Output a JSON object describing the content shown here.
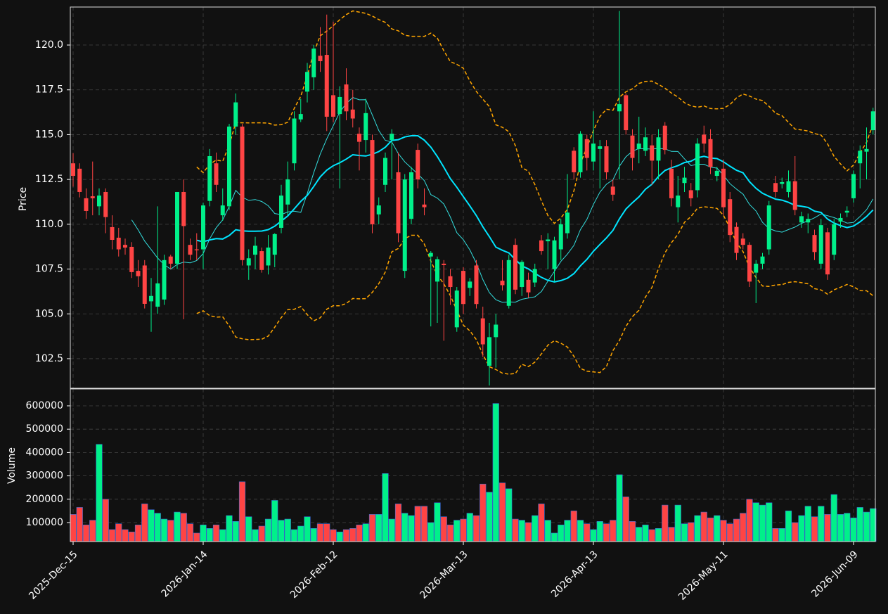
{
  "chart_data": {
    "type": "candlestick",
    "ylabel": "Price",
    "volume_label": "Volume",
    "up_color": "#00f08a",
    "down_color": "#ff4444",
    "grid": true,
    "moving_averages": [
      {
        "window": 10,
        "color": "#33dddd",
        "width": 1
      },
      {
        "window": 20,
        "color": "#00e5ff",
        "width": 2
      }
    ],
    "bollinger": {
      "window": 20,
      "std": 2,
      "color": "#ffa500"
    },
    "ylim": [
      100.85,
      122.12
    ],
    "yticks": [
      {
        "value": 102.5,
        "label": "102.5"
      },
      {
        "value": 105,
        "label": "105.0"
      },
      {
        "value": 107.5,
        "label": "107.5"
      },
      {
        "value": 110,
        "label": "110.0"
      },
      {
        "value": 112.5,
        "label": "112.5"
      },
      {
        "value": 115,
        "label": "115.0"
      },
      {
        "value": 117.5,
        "label": "117.5"
      },
      {
        "value": 120,
        "label": "120.0"
      }
    ],
    "volume_ylim": [
      18675,
      672300
    ],
    "volume_yticks": [
      100000,
      200000,
      300000,
      400000,
      500000,
      600000
    ],
    "categories": [
      "2025-Dec-15",
      null,
      null,
      null,
      null,
      null,
      null,
      null,
      null,
      null,
      null,
      null,
      null,
      null,
      null,
      null,
      null,
      null,
      null,
      null,
      "2026-Jan-14",
      null,
      null,
      null,
      null,
      null,
      null,
      null,
      null,
      null,
      null,
      null,
      null,
      null,
      null,
      null,
      null,
      null,
      null,
      null,
      "2026-Feb-12",
      null,
      null,
      null,
      null,
      null,
      null,
      null,
      null,
      null,
      null,
      null,
      null,
      null,
      null,
      null,
      null,
      null,
      null,
      null,
      "2026-Mar-13",
      null,
      null,
      null,
      null,
      null,
      null,
      null,
      null,
      null,
      null,
      null,
      null,
      null,
      null,
      null,
      null,
      null,
      null,
      null,
      "2026-Apr-13",
      null,
      null,
      null,
      null,
      null,
      null,
      null,
      null,
      null,
      null,
      null,
      null,
      null,
      null,
      null,
      null,
      null,
      null,
      null,
      "2026-May-11",
      null,
      null,
      null,
      null,
      null,
      null,
      null,
      null,
      null,
      null,
      null,
      null,
      null,
      null,
      null,
      null,
      null,
      null,
      null,
      "2026-Jun-09",
      null,
      null,
      null
    ],
    "open": [
      113.4,
      113.1,
      111.45,
      111.56,
      111.0,
      111.8,
      109.84,
      109.25,
      108.85,
      108.74,
      107.4,
      107.7,
      105.7,
      105.4,
      105.8,
      108.2,
      107.8,
      111.8,
      108.85,
      108.6,
      108.6,
      111.3,
      113.4,
      110.5,
      111.0,
      115.45,
      115.45,
      107.7,
      108.3,
      108.5,
      107.7,
      108.3,
      109.8,
      111.1,
      113.4,
      115.85,
      117.4,
      118.2,
      119.4,
      119.45,
      117.2,
      116.15,
      117.8,
      116.4,
      115.05,
      114.7,
      114.7,
      110.55,
      112.2,
      114.7,
      112.9,
      107.4,
      110.3,
      114.15,
      111.1,
      108.2,
      106.8,
      107.8,
      107.1,
      104.25,
      107.4,
      106.45,
      107.7,
      104.75,
      102.1,
      103.7,
      106.85,
      105.45,
      108.85,
      106.5,
      106.9,
      106.75,
      109.1,
      109.05,
      107.5,
      108.6,
      109.5,
      114.1,
      112.9,
      114.75,
      113.5,
      114.2,
      114.35,
      112.1,
      116.3,
      117.2,
      114.95,
      114.2,
      114.1,
      114.4,
      113.55,
      115.5,
      113.1,
      110.95,
      112.3,
      111.9,
      111.9,
      115.0,
      114.75,
      112.7,
      113.1,
      111.4,
      109.85,
      109.2,
      108.85,
      107.3,
      107.8,
      108.6,
      112.3,
      112.25,
      111.8,
      112.4,
      110.1,
      110.1,
      109.4,
      107.8,
      109.55,
      108.3,
      110.15,
      110.65,
      111.45,
      113.4,
      114.05,
      115.25
    ],
    "high": [
      113.96,
      113.4,
      112.0,
      113.5,
      112.0,
      112.0,
      110.5,
      109.8,
      109.2,
      109.0,
      108.0,
      108.0,
      107.0,
      111.0,
      108.3,
      108.3,
      111.8,
      112.5,
      109.2,
      109.5,
      111.2,
      114.2,
      114.0,
      112.0,
      115.6,
      117.3,
      115.6,
      108.6,
      109.3,
      108.7,
      109.4,
      109.5,
      112.2,
      113.5,
      116.3,
      117.0,
      119.0,
      120.0,
      121.0,
      121.7,
      121.3,
      117.7,
      118.7,
      117.5,
      115.4,
      117.0,
      115.0,
      111.5,
      114.0,
      115.3,
      114.0,
      112.8,
      113.2,
      114.5,
      112.0,
      108.5,
      108.2,
      108.0,
      107.5,
      106.5,
      107.6,
      107.0,
      108.0,
      105.4,
      104.5,
      105.0,
      108.0,
      108.3,
      109.2,
      108.0,
      107.3,
      107.8,
      109.4,
      109.5,
      109.3,
      110.3,
      112.8,
      114.3,
      115.2,
      115.0,
      116.3,
      114.7,
      114.7,
      112.5,
      121.9,
      117.3,
      115.3,
      116.0,
      115.4,
      115.0,
      115.3,
      115.7,
      113.6,
      112.7,
      113.2,
      112.3,
      114.8,
      115.5,
      115.3,
      113.2,
      113.6,
      111.8,
      110.1,
      109.5,
      109.0,
      108.0,
      108.4,
      111.3,
      112.7,
      112.6,
      113.0,
      113.8,
      110.7,
      110.6,
      109.7,
      110.3,
      109.8,
      110.3,
      110.6,
      111.0,
      113.0,
      114.4,
      115.4,
      116.5
    ],
    "low": [
      112.1,
      111.5,
      110.3,
      110.5,
      110.5,
      109.5,
      108.6,
      108.2,
      108.3,
      107.0,
      106.5,
      105.3,
      104.0,
      105.0,
      105.5,
      107.5,
      107.5,
      104.7,
      108.0,
      108.0,
      107.5,
      111.0,
      111.8,
      110.2,
      110.8,
      115.0,
      107.7,
      106.9,
      107.5,
      107.3,
      107.2,
      107.6,
      109.5,
      110.5,
      113.0,
      115.7,
      116.8,
      117.5,
      118.5,
      115.2,
      115.7,
      112.0,
      115.8,
      115.4,
      113.0,
      114.0,
      109.5,
      110.0,
      111.8,
      112.5,
      109.0,
      107.0,
      110.0,
      112.0,
      110.5,
      104.3,
      104.5,
      103.5,
      105.5,
      104.0,
      105.0,
      106.0,
      105.3,
      102.6,
      101.0,
      102.0,
      106.3,
      105.3,
      106.1,
      106.0,
      105.9,
      106.5,
      108.3,
      107.5,
      106.8,
      108.0,
      109.2,
      112.5,
      112.6,
      113.0,
      113.0,
      112.0,
      112.5,
      111.3,
      112.5,
      115.0,
      113.0,
      113.4,
      113.8,
      112.2,
      112.5,
      113.9,
      111.0,
      110.1,
      111.8,
      111.0,
      111.5,
      114.0,
      112.8,
      112.4,
      110.5,
      109.0,
      108.0,
      108.6,
      106.5,
      105.6,
      107.5,
      108.3,
      111.5,
      112.0,
      111.5,
      110.5,
      109.8,
      109.5,
      108.0,
      107.5,
      106.9,
      108.0,
      109.8,
      110.4,
      111.2,
      112.0,
      112.5,
      115.0
    ],
    "close": [
      112.7,
      111.8,
      110.74,
      111.45,
      111.6,
      110.4,
      109.13,
      108.6,
      108.7,
      107.33,
      107.1,
      105.56,
      106.0,
      106.7,
      108.0,
      107.8,
      111.8,
      109.9,
      108.3,
      108.55,
      111.05,
      113.8,
      112.2,
      111.05,
      115.45,
      116.8,
      108.0,
      108.1,
      108.8,
      107.45,
      108.7,
      109.45,
      111.6,
      112.5,
      115.9,
      116.15,
      118.5,
      119.8,
      119.1,
      116.0,
      116.0,
      117.1,
      116.3,
      115.9,
      114.6,
      116.2,
      110.0,
      111.05,
      113.7,
      115.05,
      109.5,
      112.5,
      112.9,
      112.5,
      110.95,
      108.4,
      108.05,
      107.72,
      106.5,
      106.3,
      105.55,
      106.8,
      105.55,
      103.3,
      103.7,
      104.4,
      106.6,
      108.0,
      106.35,
      107.9,
      106.2,
      107.5,
      108.5,
      109.15,
      109.1,
      110.0,
      110.65,
      112.9,
      115.05,
      113.7,
      114.5,
      114.35,
      112.9,
      111.65,
      116.7,
      115.25,
      113.7,
      114.5,
      114.85,
      113.55,
      114.85,
      114.15,
      111.45,
      111.6,
      112.6,
      111.45,
      114.5,
      114.5,
      113.2,
      112.98,
      110.95,
      109.4,
      108.4,
      108.85,
      106.8,
      107.8,
      108.2,
      111.05,
      111.8,
      112.35,
      112.4,
      110.8,
      110.45,
      110.3,
      108.45,
      109.95,
      107.2,
      110.0,
      110.35,
      110.75,
      112.8,
      114.1,
      114.2,
      116.3
    ],
    "volume": [
      135000,
      165000,
      90000,
      110000,
      435000,
      200000,
      70000,
      95000,
      70000,
      60000,
      90000,
      180000,
      155000,
      140000,
      115000,
      110000,
      145000,
      140000,
      95000,
      55000,
      90000,
      75000,
      90000,
      70000,
      130000,
      105000,
      275000,
      125000,
      70000,
      85000,
      115000,
      195000,
      110000,
      115000,
      70000,
      85000,
      125000,
      75000,
      95000,
      95000,
      70000,
      60000,
      70000,
      75000,
      90000,
      95000,
      135000,
      135000,
      310000,
      115000,
      180000,
      140000,
      130000,
      170000,
      170000,
      100000,
      185000,
      125000,
      90000,
      110000,
      115000,
      140000,
      130000,
      265000,
      230000,
      610000,
      270000,
      245000,
      115000,
      110000,
      100000,
      130000,
      180000,
      110000,
      55000,
      90000,
      110000,
      150000,
      110000,
      95000,
      70000,
      105000,
      95000,
      110000,
      305000,
      210000,
      105000,
      80000,
      90000,
      70000,
      75000,
      175000,
      80000,
      175000,
      95000,
      100000,
      130000,
      145000,
      120000,
      130000,
      110000,
      95000,
      115000,
      140000,
      200000,
      185000,
      175000,
      185000,
      75000,
      75000,
      150000,
      100000,
      130000,
      170000,
      125000,
      170000,
      135000,
      220000,
      135000,
      140000,
      120000,
      165000,
      145000,
      160000
    ]
  }
}
